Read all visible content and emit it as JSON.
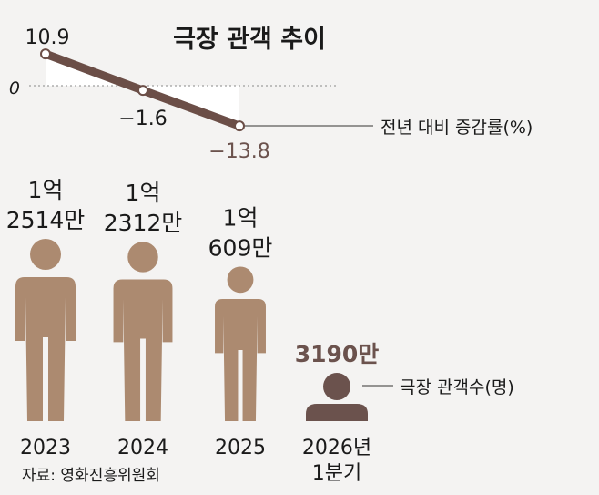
{
  "title": "극장 관객 추이",
  "source": "자료: 영화진흥위원회",
  "colors": {
    "background": "#f4f3f2",
    "line": "#6b4e47",
    "figure_past": "#ac8a70",
    "figure_current": "#6b524d",
    "highlight_text": "#6b524d",
    "text": "#1a1a1a"
  },
  "chart_data": [
    {
      "type": "line",
      "title": "",
      "label": "전년 대비 증감률(%)",
      "zero_label": "0",
      "x": [
        "2023",
        "2024",
        "2025"
      ],
      "values": [
        10.9,
        -1.6,
        -13.8
      ],
      "value_labels": [
        "10.9",
        "−1.6",
        "−13.8"
      ],
      "ylim": [
        -14,
        11
      ]
    },
    {
      "type": "bar",
      "label": "극장 관객수(명)",
      "categories": [
        "2023",
        "2024",
        "2025",
        "2026년 1분기"
      ],
      "category_lines": [
        [
          "2023"
        ],
        [
          "2024"
        ],
        [
          "2025"
        ],
        [
          "2026년",
          "1분기"
        ]
      ],
      "values": [
        125140000,
        123120000,
        106090000,
        31900000
      ],
      "value_labels": [
        [
          "1억",
          "2514만"
        ],
        [
          "1억",
          "2312만"
        ],
        [
          "1억",
          "609만"
        ],
        [
          "3190만"
        ]
      ]
    }
  ]
}
